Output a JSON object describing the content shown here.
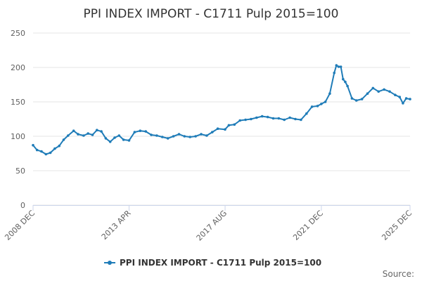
{
  "chart_data": {
    "type": "line",
    "title": "PPI INDEX IMPORT - C1711 Pulp 2015=100",
    "xlabel": "",
    "ylabel": "",
    "ylim": [
      0,
      250
    ],
    "y_ticks": [
      0,
      50,
      100,
      150,
      200,
      250
    ],
    "x_range": [
      2008.92,
      2025.92
    ],
    "x_ticks": [
      {
        "label": "2008 DEC",
        "x": 2008.92
      },
      {
        "label": "2013 APR",
        "x": 2013.25
      },
      {
        "label": "2017 AUG",
        "x": 2017.58
      },
      {
        "label": "2021 DEC",
        "x": 2021.92
      },
      {
        "label": "2025 DEC",
        "x": 2025.92
      }
    ],
    "grid": true,
    "legend_position": "bottom-center",
    "color": "#1f7cb8",
    "credit": "Source:",
    "series": [
      {
        "name": "PPI INDEX IMPORT - C1711 Pulp 2015=100",
        "x": [
          2008.92,
          2009.1,
          2009.3,
          2009.5,
          2009.7,
          2009.9,
          2010.1,
          2010.3,
          2010.5,
          2010.75,
          2010.95,
          2011.2,
          2011.4,
          2011.6,
          2011.8,
          2012.0,
          2012.2,
          2012.4,
          2012.6,
          2012.8,
          2013.0,
          2013.25,
          2013.5,
          2013.75,
          2014.0,
          2014.25,
          2014.5,
          2014.75,
          2015.0,
          2015.25,
          2015.5,
          2015.75,
          2016.0,
          2016.25,
          2016.5,
          2016.75,
          2017.0,
          2017.25,
          2017.58,
          2017.75,
          2018.0,
          2018.25,
          2018.5,
          2018.75,
          2019.0,
          2019.25,
          2019.5,
          2019.75,
          2020.0,
          2020.25,
          2020.5,
          2020.75,
          2021.0,
          2021.25,
          2021.5,
          2021.75,
          2021.92,
          2022.1,
          2022.3,
          2022.5,
          2022.6,
          2022.7,
          2022.8,
          2022.9,
          2023.0,
          2023.1,
          2023.3,
          2023.5,
          2023.75,
          2024.0,
          2024.25,
          2024.5,
          2024.75,
          2025.0,
          2025.25,
          2025.45,
          2025.6,
          2025.75,
          2025.92
        ],
        "values": [
          87,
          80,
          78,
          74,
          76,
          82,
          86,
          95,
          101,
          108,
          103,
          101,
          104,
          102,
          109,
          107,
          97,
          92,
          98,
          101,
          95,
          94,
          106,
          108,
          107,
          102,
          101,
          99,
          97,
          100,
          103,
          100,
          99,
          100,
          103,
          101,
          106,
          111,
          110,
          116,
          117,
          123,
          124,
          125,
          127,
          129,
          128,
          126,
          126,
          124,
          127,
          125,
          124,
          133,
          143,
          144,
          147,
          150,
          162,
          192,
          203,
          201,
          201,
          183,
          179,
          173,
          155,
          152,
          154,
          162,
          170,
          165,
          168,
          165,
          160,
          157,
          148,
          155,
          154
        ]
      }
    ]
  }
}
